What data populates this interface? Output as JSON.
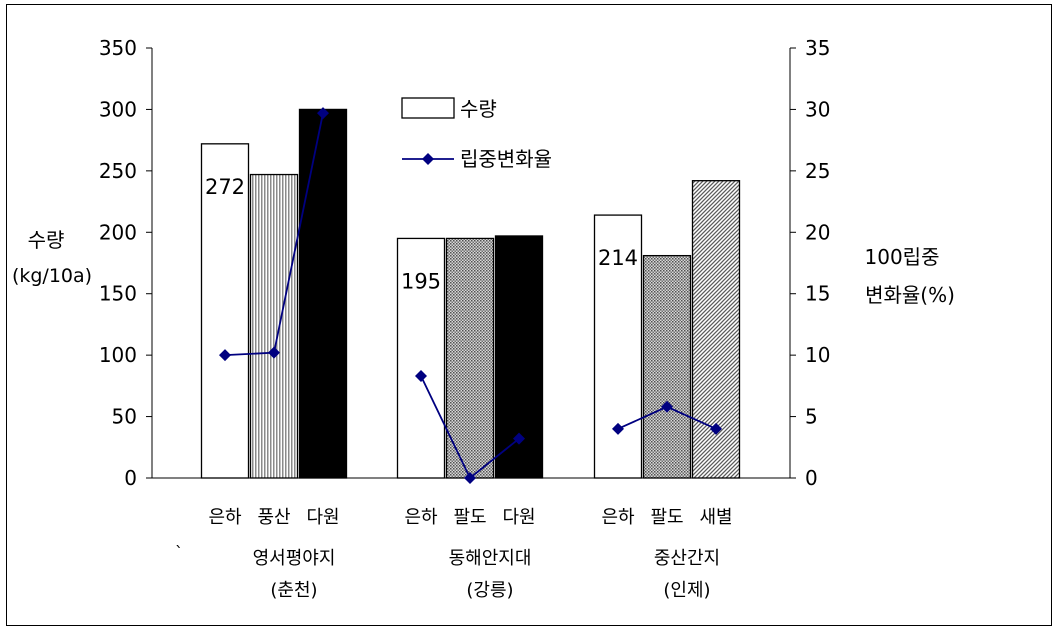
{
  "chart_data": {
    "type": "bar",
    "categories": [
      {
        "cultivars": [
          "은하",
          "풍산",
          "다원"
        ],
        "region": "영서평야지",
        "region_sub": "(춘천)"
      },
      {
        "cultivars": [
          "은하",
          "팔도",
          "다원"
        ],
        "region": "동해안지대",
        "region_sub": "(강릉)"
      },
      {
        "cultivars": [
          "은하",
          "팔도",
          "새별"
        ],
        "region": "중산간지",
        "region_sub": "(인제)"
      }
    ],
    "bar_values": [
      [
        272,
        247,
        300
      ],
      [
        195,
        195,
        197
      ],
      [
        214,
        181,
        242
      ]
    ],
    "bar_patterns": [
      [
        "white",
        "vstripe",
        "black"
      ],
      [
        "white",
        "dots",
        "black"
      ],
      [
        "white",
        "dots",
        "diag"
      ]
    ],
    "bar_data_labels": [
      "272",
      "195",
      "214"
    ],
    "line_values": [
      [
        10.0,
        10.2,
        29.7
      ],
      [
        8.3,
        0.0,
        3.2
      ],
      [
        4.0,
        5.8,
        4.0
      ]
    ],
    "y_left": {
      "label_line1": "수량",
      "label_line2": "(kg/10a)",
      "min": 0,
      "max": 350,
      "ticks": [
        0,
        50,
        100,
        150,
        200,
        250,
        300,
        350
      ]
    },
    "y_right": {
      "label_line1": "100립중",
      "label_line2": "변화율(%)",
      "min": 0,
      "max": 35,
      "ticks": [
        0,
        5,
        10,
        15,
        20,
        25,
        30,
        35
      ]
    },
    "legend": {
      "items": [
        {
          "name": "수량",
          "kind": "bar"
        },
        {
          "name": "립중변화율",
          "kind": "line"
        }
      ],
      "placement": "top-center"
    },
    "colors": {
      "line": "#000080",
      "bar_edge": "#000000"
    },
    "stray_mark": "`",
    "grid": false
  }
}
